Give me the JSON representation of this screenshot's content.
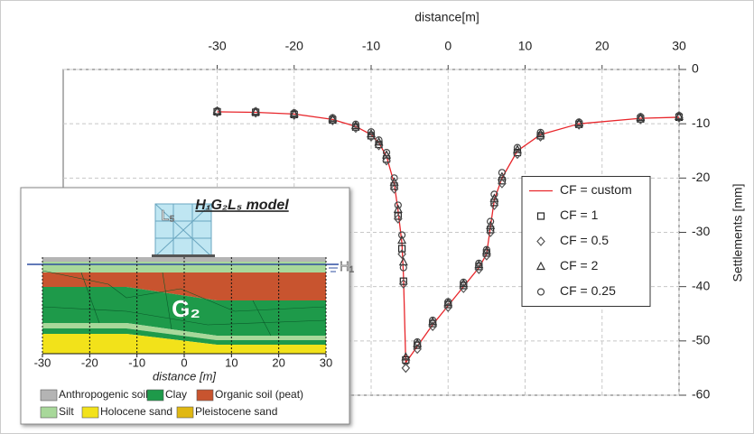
{
  "chart_data": {
    "type": "line",
    "xlabel": "distance[m]",
    "ylabel": "Settlements [mm]",
    "xlim": [
      -50,
      30
    ],
    "xticks": [
      -30,
      -20,
      -10,
      0,
      10,
      20,
      30
    ],
    "ylim": [
      -60,
      0
    ],
    "yticks": [
      -60,
      -50,
      -40,
      -30,
      -20,
      -10,
      0
    ],
    "grid": true,
    "legend_loc": "center right",
    "x": [
      -30,
      -25,
      -20,
      -15,
      -12,
      -10,
      -9,
      -8,
      -7,
      -6.5,
      -6,
      -5.8,
      -5.5,
      -4,
      -2,
      0,
      2,
      4,
      5,
      5.5,
      6,
      7,
      9,
      12,
      17,
      25,
      30
    ],
    "series": [
      {
        "name": "CF = custom",
        "color": "#e8262b",
        "style": "line",
        "values": [
          -7.8,
          -7.9,
          -8.2,
          -9.2,
          -10.5,
          -12,
          -13.5,
          -16,
          -21,
          -26,
          -32,
          -38,
          -54,
          -51,
          -47,
          -43.5,
          -40,
          -36.5,
          -34,
          -29,
          -24,
          -20,
          -15,
          -12,
          -10,
          -9,
          -8.8
        ]
      },
      {
        "name": "CF = 1",
        "color": "#222222",
        "style": "square",
        "values": [
          -7.8,
          -7.9,
          -8.3,
          -9.3,
          -10.6,
          -12.2,
          -13.8,
          -16.5,
          -21.5,
          -27,
          -33,
          -39,
          -53.5,
          -50.8,
          -46.8,
          -43.3,
          -39.8,
          -36.3,
          -33.8,
          -29.5,
          -24.5,
          -20.5,
          -15.3,
          -12.2,
          -10.1,
          -9.1,
          -8.8
        ]
      },
      {
        "name": "CF = 0.5",
        "color": "#555555",
        "style": "diamond",
        "values": [
          -7.9,
          -8,
          -8.4,
          -9.4,
          -10.8,
          -12.4,
          -14,
          -16.8,
          -22,
          -27.5,
          -34,
          -39.5,
          -55,
          -51.5,
          -47.3,
          -43.8,
          -40.3,
          -36.8,
          -34.3,
          -30,
          -25,
          -21,
          -15.6,
          -12.4,
          -10.2,
          -9.2,
          -8.9
        ]
      },
      {
        "name": "CF = 2",
        "color": "#333333",
        "style": "triangle",
        "values": [
          -7.7,
          -7.8,
          -8.2,
          -9.1,
          -10.4,
          -11.9,
          -13.4,
          -15.8,
          -20.8,
          -25.8,
          -31.5,
          -35.5,
          -53,
          -50.5,
          -46.5,
          -43,
          -39.5,
          -36,
          -33.5,
          -28.8,
          -23.8,
          -19.8,
          -14.8,
          -11.9,
          -9.9,
          -8.9,
          -8.7
        ]
      },
      {
        "name": "CF = 0.25",
        "color": "#444444",
        "style": "circle",
        "values": [
          -7.6,
          -7.7,
          -8,
          -8.9,
          -10.1,
          -11.5,
          -13,
          -15.3,
          -20,
          -25,
          -30.5,
          -36.5,
          -53.8,
          -50.2,
          -46.2,
          -42.8,
          -39.2,
          -35.7,
          -33.2,
          -28,
          -23,
          -19,
          -14.4,
          -11.6,
          -9.7,
          -8.7,
          -8.5
        ]
      }
    ]
  },
  "inset": {
    "title": "H₁G₂L₅ model",
    "building_label": "L₅",
    "water_label": "H₁",
    "ground_label": "G₂",
    "xlabel": "distance [m]",
    "xlim": [
      -30,
      30
    ],
    "xticks": [
      -30,
      -20,
      -10,
      0,
      10,
      20,
      30
    ],
    "legend": [
      {
        "name": "Anthropogenic soil",
        "color": "#b4b4b4"
      },
      {
        "name": "Clay",
        "color": "#1e9a4a"
      },
      {
        "name": "Organic soil (peat)",
        "color": "#c8542f"
      },
      {
        "name": "Silt",
        "color": "#a8d89a"
      },
      {
        "name": "Holocene sand",
        "color": "#f2e21a"
      },
      {
        "name": "Pleistocene sand",
        "color": "#e0b812"
      }
    ]
  }
}
